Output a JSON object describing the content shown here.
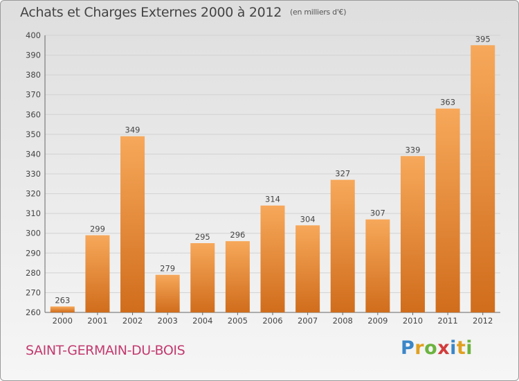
{
  "header": {
    "title": "Achats et Charges Externes 2000 à 2012",
    "unit": "(en milliers d'€)"
  },
  "footer": {
    "city": "SAINT-GERMAIN-DU-BOIS",
    "logo_letters": [
      {
        "ch": "P",
        "color": "#3a86c8"
      },
      {
        "ch": "r",
        "color": "#e0a020"
      },
      {
        "ch": "o",
        "color": "#6cb33f"
      },
      {
        "ch": "x",
        "color": "#d23c3c"
      },
      {
        "ch": "i",
        "color": "#3a86c8"
      },
      {
        "ch": "t",
        "color": "#e0a020"
      },
      {
        "ch": "i",
        "color": "#6cb33f"
      }
    ]
  },
  "colors": {
    "bar_light": "#f7a85a",
    "bar_dark": "#d06d1c",
    "grid": "#d2d2d2",
    "axis_text": "#444444",
    "city": "#c23a6e"
  },
  "chart_data": {
    "type": "bar",
    "title": "Achats et Charges Externes 2000 à 2012",
    "subtitle": "(en milliers d'€)",
    "categories": [
      "2000",
      "2001",
      "2002",
      "2003",
      "2004",
      "2005",
      "2006",
      "2007",
      "2008",
      "2009",
      "2010",
      "2011",
      "2012"
    ],
    "values": [
      263,
      299,
      349,
      279,
      295,
      296,
      314,
      304,
      327,
      307,
      339,
      363,
      395
    ],
    "ylim": [
      260,
      400
    ],
    "yticks": [
      260,
      270,
      280,
      290,
      300,
      310,
      320,
      330,
      340,
      350,
      360,
      370,
      380,
      390,
      400
    ],
    "grid": true,
    "xlabel": "",
    "ylabel": ""
  }
}
